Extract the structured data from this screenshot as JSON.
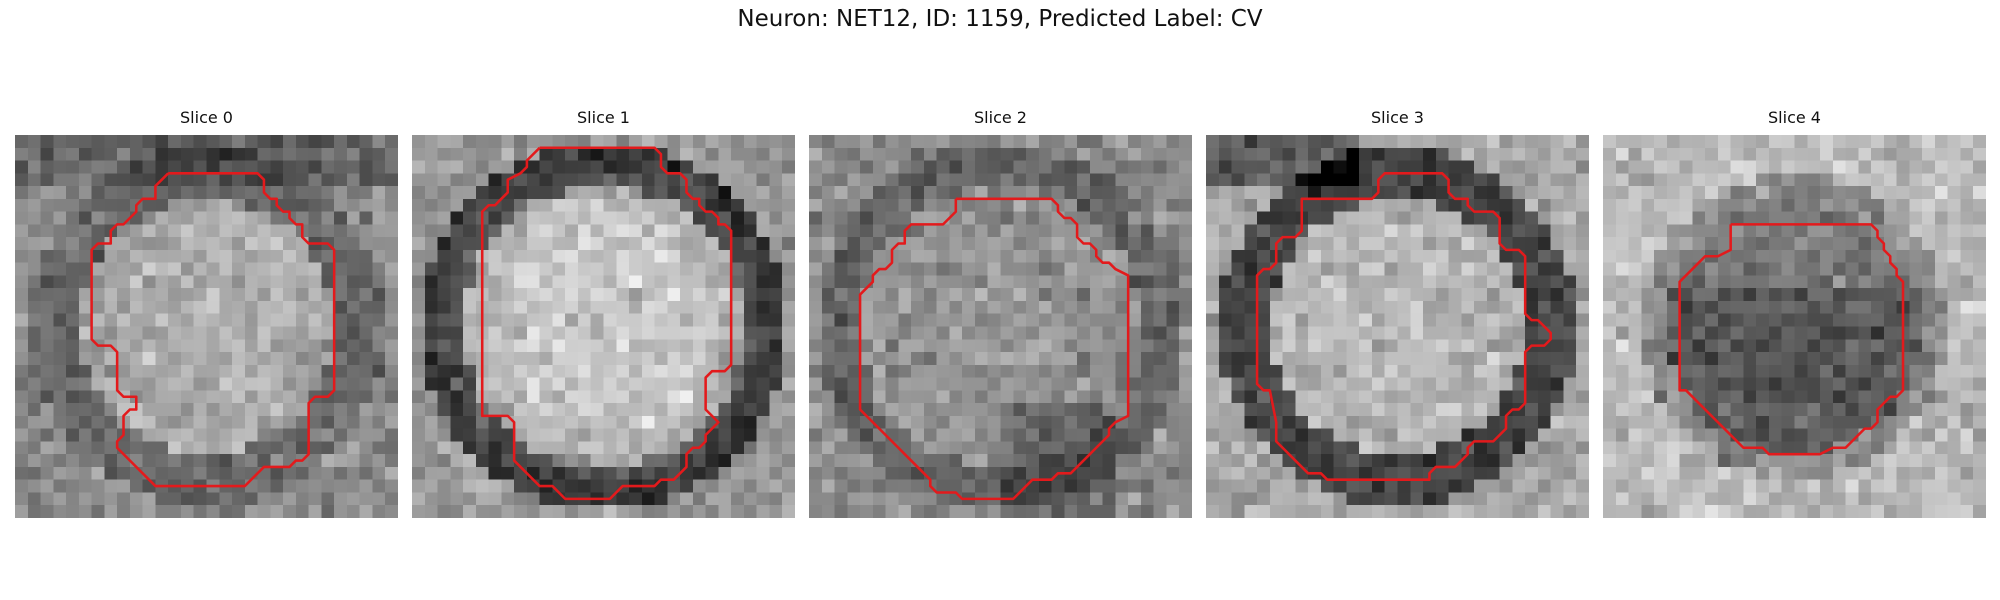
{
  "figure": {
    "title": "Neuron: NET12, ID: 1159, Predicted Label: CV"
  },
  "contour_color": "#e31a1c",
  "panels": [
    {
      "title": "Slice 0",
      "style": "bright-center"
    },
    {
      "title": "Slice 1",
      "style": "bright-large"
    },
    {
      "title": "Slice 2",
      "style": "speckled"
    },
    {
      "title": "Slice 3",
      "style": "bright-dark-ring"
    },
    {
      "title": "Slice 4",
      "style": "dark-center"
    }
  ]
}
